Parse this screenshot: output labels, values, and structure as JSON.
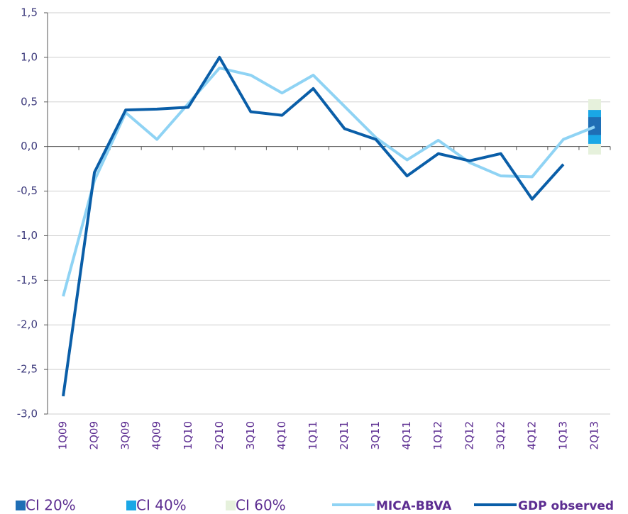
{
  "chart_data": {
    "type": "line",
    "categories": [
      "1Q09",
      "2Q09",
      "3Q09",
      "4Q09",
      "1Q10",
      "2Q10",
      "3Q10",
      "4Q10",
      "1Q11",
      "2Q11",
      "3Q11",
      "4Q11",
      "1Q12",
      "2Q12",
      "3Q12",
      "4Q12",
      "1Q13",
      "2Q13"
    ],
    "series": [
      {
        "name": "MICA-BBVA",
        "color": "#8fd3f4",
        "values": [
          -1.68,
          -0.38,
          0.38,
          0.08,
          0.48,
          0.88,
          0.8,
          0.6,
          0.8,
          0.45,
          0.1,
          -0.15,
          0.07,
          -0.18,
          -0.33,
          -0.34,
          0.08,
          0.22
        ]
      },
      {
        "name": "GDP observed",
        "color": "#0a5ea8",
        "values": [
          -2.8,
          -0.29,
          0.41,
          0.42,
          0.44,
          1.0,
          0.39,
          0.35,
          0.65,
          0.2,
          0.08,
          -0.33,
          -0.08,
          -0.16,
          -0.08,
          -0.59,
          -0.2,
          null
        ]
      }
    ],
    "intervals": [
      {
        "name": "CI 60%",
        "color": "#e6f1dc",
        "category": "2Q13",
        "low": -0.09,
        "high": 0.53
      },
      {
        "name": "CI 40%",
        "color": "#1aa7e6",
        "category": "2Q13",
        "low": 0.03,
        "high": 0.41
      },
      {
        "name": "CI 20%",
        "color": "#1f6eb5",
        "category": "2Q13",
        "low": 0.13,
        "high": 0.33
      }
    ],
    "legend_order": [
      "CI 20%",
      "CI 40%",
      "CI 60%",
      "MICA-BBVA",
      "GDP observed"
    ],
    "ylim": [
      -3.0,
      1.5
    ],
    "yticks": [
      {
        "value": -3.0,
        "label": "-3,0"
      },
      {
        "value": -2.5,
        "label": "-2,5"
      },
      {
        "value": -2.0,
        "label": "-2,0"
      },
      {
        "value": -1.5,
        "label": "-1,5"
      },
      {
        "value": -1.0,
        "label": "-1,0"
      },
      {
        "value": -0.5,
        "label": "-0,5"
      },
      {
        "value": 0.0,
        "label": "0,0"
      },
      {
        "value": 0.5,
        "label": "0,5"
      },
      {
        "value": 1.0,
        "label": "1,0"
      },
      {
        "value": 1.5,
        "label": "1,5"
      }
    ],
    "grid": true
  }
}
